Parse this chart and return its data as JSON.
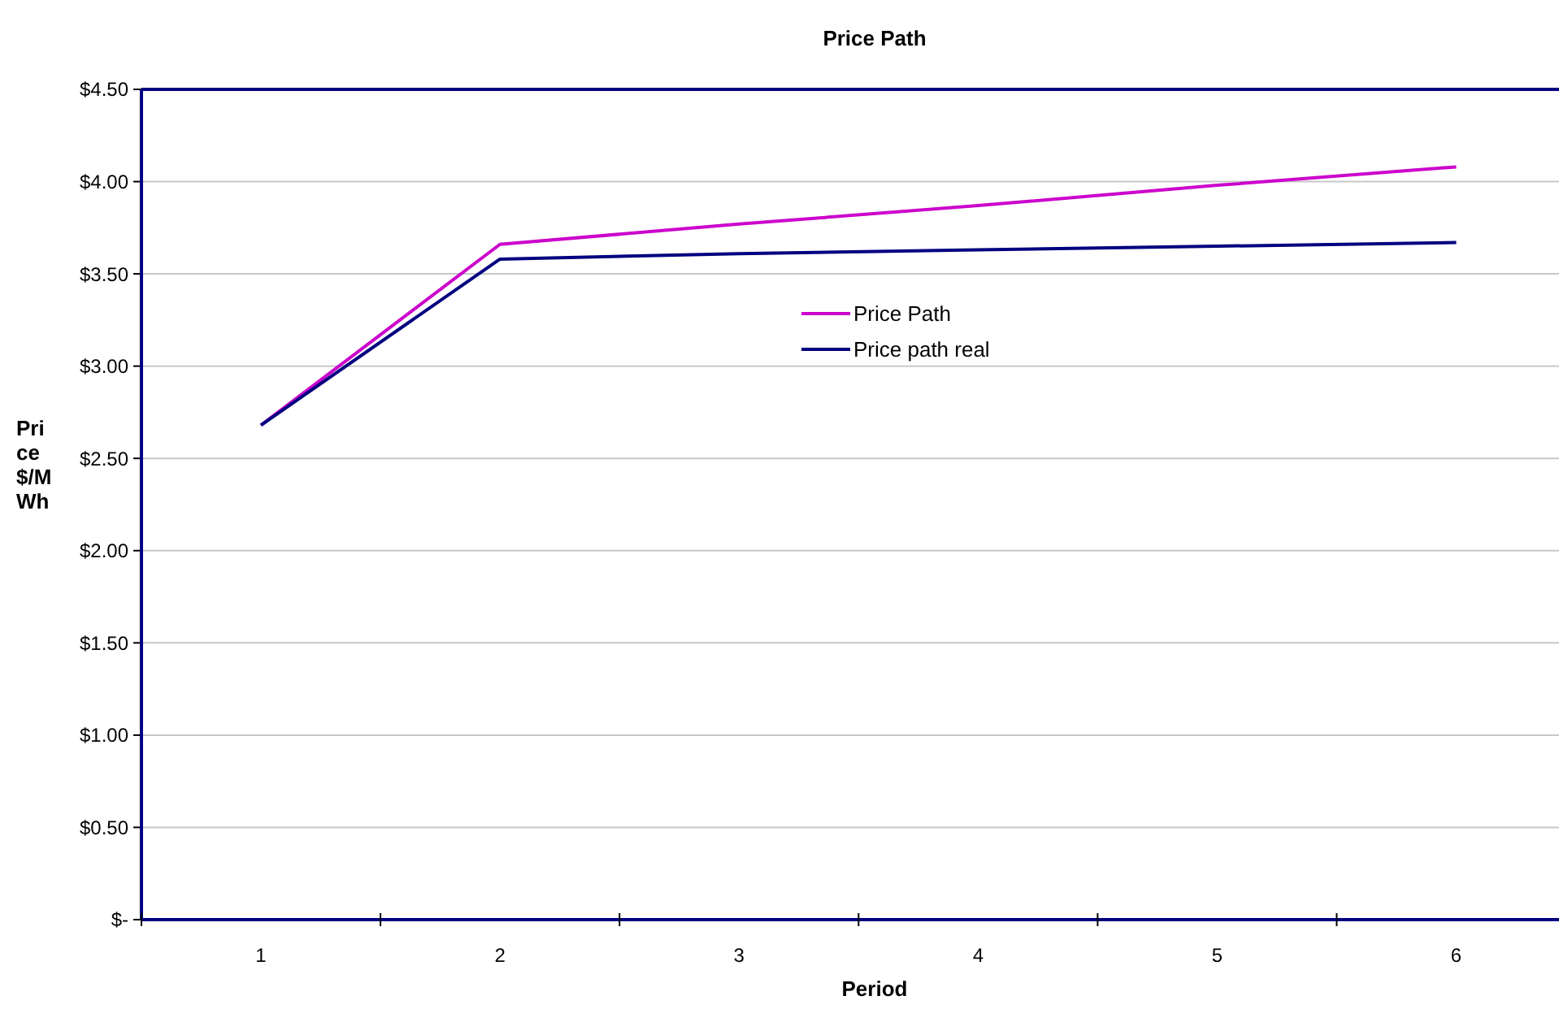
{
  "chart_data": {
    "type": "line",
    "title": "Price Path",
    "xlabel": "Period",
    "ylabel": "Price $/MWh",
    "categories": [
      "1",
      "2",
      "3",
      "4",
      "5",
      "6"
    ],
    "series": [
      {
        "name": "Price Path",
        "color": "#cc00cc",
        "values": [
          2.68,
          3.66,
          3.77,
          3.87,
          3.98,
          4.08
        ]
      },
      {
        "name": "Price path real",
        "color": "#000080",
        "values": [
          2.68,
          3.58,
          3.61,
          3.63,
          3.65,
          3.67
        ]
      }
    ],
    "ylim": [
      0,
      4.5
    ],
    "yticks": [
      {
        "value": 0,
        "label": "$-"
      },
      {
        "value": 0.5,
        "label": "$0.50"
      },
      {
        "value": 1,
        "label": "$1.00"
      },
      {
        "value": 1.5,
        "label": "$1.50"
      },
      {
        "value": 2,
        "label": "$2.00"
      },
      {
        "value": 2.5,
        "label": "$2.50"
      },
      {
        "value": 3,
        "label": "$3.00"
      },
      {
        "value": 3.5,
        "label": "$3.50"
      },
      {
        "value": 4,
        "label": "$4.00"
      },
      {
        "value": 4.5,
        "label": "$4.50"
      }
    ],
    "grid": "y",
    "legend": "center",
    "marker": "none",
    "line_style": "solid"
  }
}
